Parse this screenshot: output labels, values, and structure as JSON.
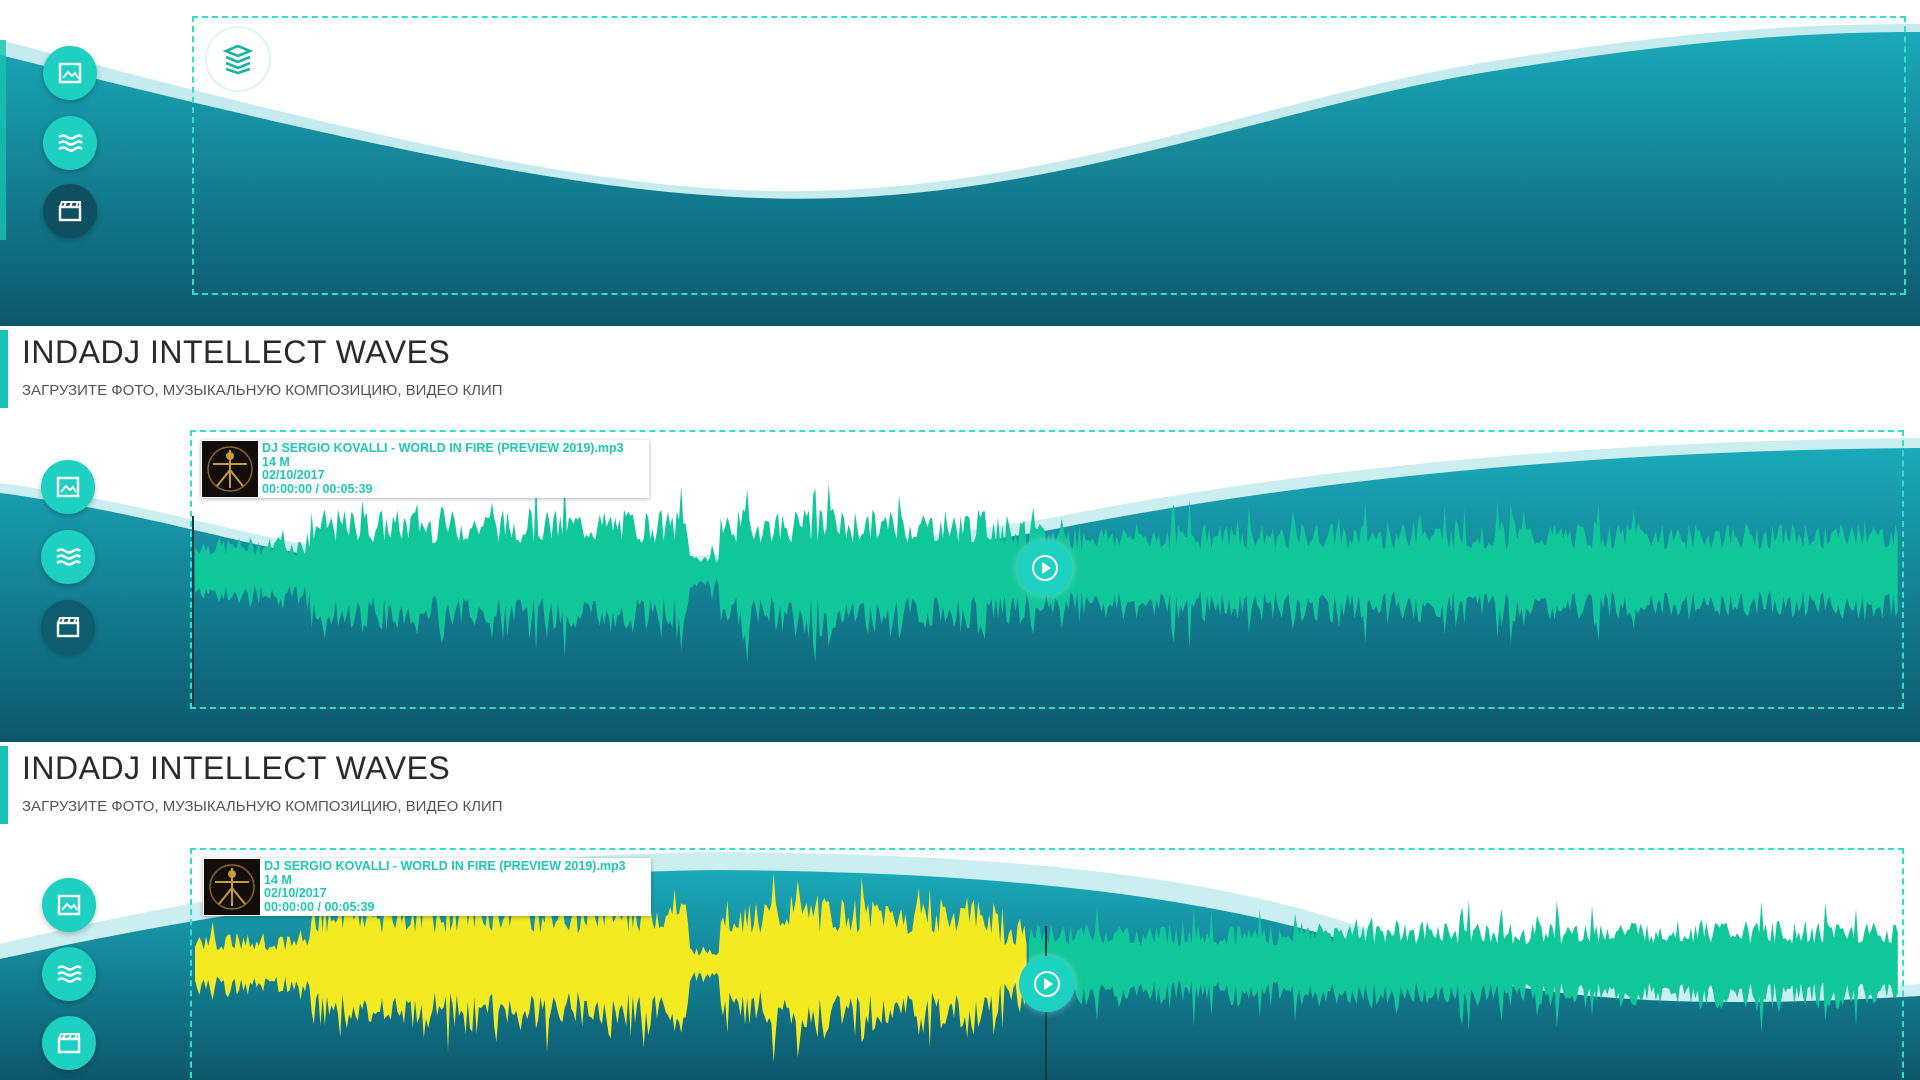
{
  "app": {
    "title": "INDADJ INTELLECT WAVES",
    "subtitle": "ЗАГРУЗИТЕ ФОТО, МУЗЫКАЛЬНУЮ КОМПОЗИЦИЮ, ВИДЕО КЛИП"
  },
  "sidebar": {
    "buttons": [
      {
        "name": "image-upload",
        "icon": "image-icon"
      },
      {
        "name": "audio-upload",
        "icon": "waves-icon"
      },
      {
        "name": "video-upload",
        "icon": "clapperboard-icon"
      }
    ]
  },
  "track": {
    "filename": "DJ SERGIO KOVALLI - WORLD IN FIRE (PREVIEW 2019).mp3",
    "size": "14 M",
    "date": "02/10/2017",
    "time": "00:00:00 / 00:05:39"
  },
  "playback": {
    "mid_panel_cursor_fraction": 0.486,
    "bottom_panel_progress_fraction": 0.488
  },
  "colors": {
    "accent": "#1dd0c1",
    "dashed_border": "#2fe0c9",
    "wave_teal_top": "#17a7b6",
    "wave_teal_bottom": "#0e5e73",
    "waveform": "#10c79a",
    "waveform_played": "#f3ea22",
    "track_text": "#1ec8b6"
  }
}
